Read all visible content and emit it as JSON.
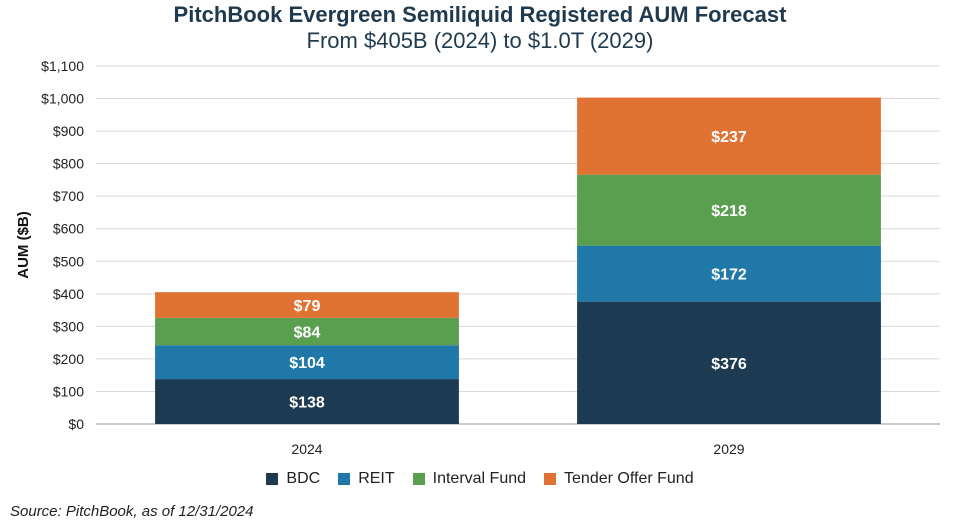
{
  "chart_data": {
    "type": "bar",
    "stacked": true,
    "title": "PitchBook Evergreen Semiliquid Registered AUM Forecast",
    "subtitle": "From $405B (2024) to $1.0T (2029)",
    "xlabel": "",
    "ylabel": "AUM ($B)",
    "ylim": [
      0,
      1100
    ],
    "yticks": [
      "$0",
      "$100",
      "$200",
      "$300",
      "$400",
      "$500",
      "$600",
      "$700",
      "$800",
      "$900",
      "$1,000",
      "$1,100"
    ],
    "ytick_values": [
      0,
      100,
      200,
      300,
      400,
      500,
      600,
      700,
      800,
      900,
      1000,
      1100
    ],
    "grid": true,
    "legend_position": "bottom",
    "categories": [
      "2024",
      "2029"
    ],
    "series": [
      {
        "name": "BDC",
        "values": [
          138,
          376
        ],
        "labels": [
          "$138",
          "$376"
        ],
        "color": "#1c3a52"
      },
      {
        "name": "REIT",
        "values": [
          104,
          172
        ],
        "labels": [
          "$104",
          "$172"
        ],
        "color": "#1f78a8"
      },
      {
        "name": "Interval Fund",
        "values": [
          84,
          218
        ],
        "labels": [
          "$84",
          "$218"
        ],
        "color": "#5a9e4f"
      },
      {
        "name": "Tender Offer Fund",
        "values": [
          79,
          237
        ],
        "labels": [
          "$79",
          "$237"
        ],
        "color": "#e07233"
      }
    ],
    "source": "Source: PitchBook, as of 12/31/2024"
  }
}
